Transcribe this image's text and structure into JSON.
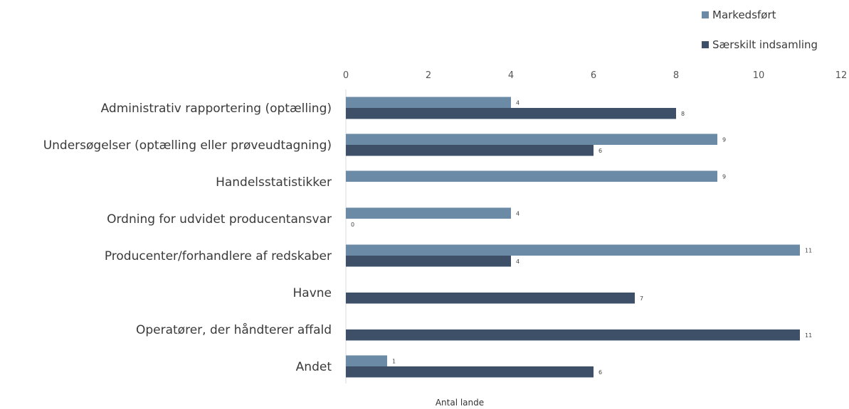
{
  "chart_data": {
    "type": "bar",
    "orientation": "horizontal",
    "categories": [
      "Administrativ rapportering (optælling)",
      "Undersøgelser (optælling eller prøveudtagning)",
      "Handelsstatistikker",
      "Ordning for udvidet producentansvar",
      "Producenter/forhandlere af redskaber",
      "Havne",
      "Operatører, der håndterer affald",
      "Andet"
    ],
    "series": [
      {
        "name": "Markedsført",
        "color": "#6a8aa6",
        "values": [
          4,
          9,
          9,
          4,
          11,
          null,
          null,
          1
        ]
      },
      {
        "name": "Særskilt indsamling",
        "color": "#3d5068",
        "values": [
          8,
          6,
          null,
          0,
          4,
          7,
          11,
          6
        ]
      }
    ],
    "xlabel": "Antal lande",
    "ylabel": "",
    "xlim": [
      0,
      12
    ],
    "ticks": [
      0,
      2,
      4,
      6,
      8,
      10,
      12
    ],
    "tick_labels": [
      "0",
      "2",
      "4",
      "6",
      "8",
      "10",
      "12"
    ],
    "legend_position": "top-right",
    "grid": false
  }
}
